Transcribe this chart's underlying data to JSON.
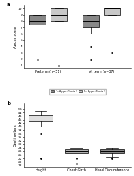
{
  "panel_a": {
    "ylabel": "Apgar score",
    "ylim": [
      0.5,
      10.5
    ],
    "yticks": [
      1,
      2,
      3,
      4,
      5,
      6,
      7,
      8,
      9,
      10
    ],
    "groups": [
      "Preterm (n=51)",
      "At term (n=37)"
    ],
    "series": [
      "1ᵒ Apgar (1 min.)",
      "5ᵒ Apgar (5 min.)"
    ],
    "colors": [
      "#888888",
      "#c8c8c8"
    ],
    "boxes": {
      "preterm_1st": {
        "q1": 7.5,
        "median": 8,
        "q3": 9,
        "whislo": 6,
        "whishi": 9,
        "fliers": [
          2
        ]
      },
      "preterm_5th": {
        "q1": 8,
        "median": 9,
        "q3": 10,
        "whislo": 8,
        "whishi": 10,
        "fliers": [
          1
        ]
      },
      "atterm_1st": {
        "q1": 7,
        "median": 8,
        "q3": 9,
        "whislo": 6,
        "whishi": 9,
        "fliers": [
          2,
          4
        ]
      },
      "atterm_5th": {
        "q1": 9,
        "median": 10,
        "q3": 10,
        "whislo": 9,
        "whishi": 10,
        "fliers": [
          3
        ]
      }
    }
  },
  "panel_b": {
    "ylabel": "Centimeters",
    "ylim": [
      17,
      53
    ],
    "yticks": [
      18,
      20,
      22,
      24,
      26,
      28,
      30,
      32,
      34,
      36,
      38,
      40,
      42,
      44,
      46,
      48,
      50
    ],
    "categories": [
      "Height",
      "Chest Girth",
      "Head Circumference"
    ],
    "colors": [
      "#e0e0e0",
      "#b0b0b0",
      "#888888"
    ],
    "boxes": {
      "height": {
        "q1": 43,
        "median": 45,
        "q3": 46.5,
        "whislo": 40,
        "whishi": 49,
        "fliers": [
          36,
          22
        ]
      },
      "chest": {
        "q1": 25,
        "median": 26,
        "q3": 27,
        "whislo": 24,
        "whishi": 28,
        "fliers": [
          22,
          19
        ]
      },
      "head_circ": {
        "q1": 25,
        "median": 26,
        "q3": 27,
        "whislo": 23,
        "whishi": 28,
        "fliers": [
          22
        ]
      }
    }
  }
}
